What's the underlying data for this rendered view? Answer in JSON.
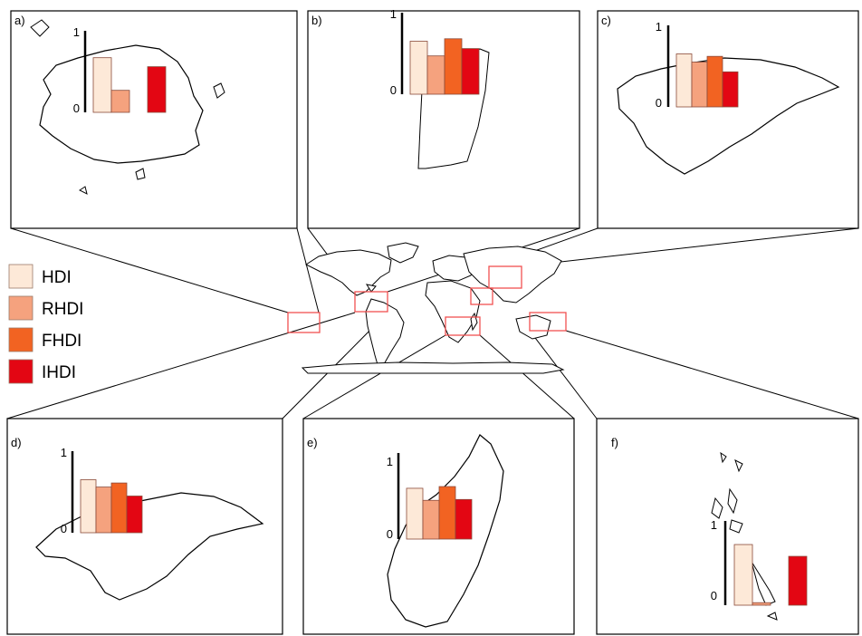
{
  "legend": [
    {
      "label": "HDI",
      "color": "#fde9d8"
    },
    {
      "label": "RHDI",
      "color": "#f5a27e"
    },
    {
      "label": "FHDI",
      "color": "#f26322"
    },
    {
      "label": "IHDI",
      "color": "#e30613"
    }
  ],
  "region_marker_color": "#f05050",
  "chart_data": [
    {
      "type": "bar",
      "panel_label": "a)",
      "axis_top_label": "1",
      "axis_bottom_label": "0",
      "ylim": [
        0,
        1
      ],
      "categories": [
        "HDI",
        "RHDI",
        "FHDI",
        "IHDI"
      ],
      "values": [
        0.67,
        0.27,
        null,
        0.56
      ]
    },
    {
      "type": "bar",
      "panel_label": "b)",
      "axis_top_label": "1",
      "axis_bottom_label": "0",
      "ylim": [
        0,
        1
      ],
      "categories": [
        "HDI",
        "RHDI",
        "FHDI",
        "IHDI"
      ],
      "values": [
        0.65,
        0.47,
        0.68,
        0.56
      ]
    },
    {
      "type": "bar",
      "panel_label": "c)",
      "axis_top_label": "1",
      "axis_bottom_label": "0",
      "ylim": [
        0,
        1
      ],
      "categories": [
        "HDI",
        "RHDI",
        "FHDI",
        "IHDI"
      ],
      "values": [
        0.65,
        0.55,
        0.62,
        0.43
      ]
    },
    {
      "type": "bar",
      "panel_label": "d)",
      "axis_top_label": "1",
      "axis_bottom_label": "0",
      "ylim": [
        0,
        1
      ],
      "categories": [
        "HDI",
        "RHDI",
        "FHDI",
        "IHDI"
      ],
      "values": [
        0.65,
        0.56,
        0.61,
        0.45
      ]
    },
    {
      "type": "bar",
      "panel_label": "e)",
      "axis_top_label": "1",
      "axis_bottom_label": "0",
      "ylim": [
        0,
        1
      ],
      "categories": [
        "HDI",
        "RHDI",
        "FHDI",
        "IHDI"
      ],
      "values": [
        0.59,
        0.45,
        0.61,
        0.46
      ]
    },
    {
      "type": "bar",
      "panel_label": "f)",
      "axis_top_label": "1",
      "axis_bottom_label": "0",
      "ylim": [
        0,
        1
      ],
      "categories": [
        "HDI",
        "RHDI",
        "FHDI",
        "IHDI"
      ],
      "values": [
        0.72,
        0.03,
        null,
        0.58
      ]
    }
  ]
}
